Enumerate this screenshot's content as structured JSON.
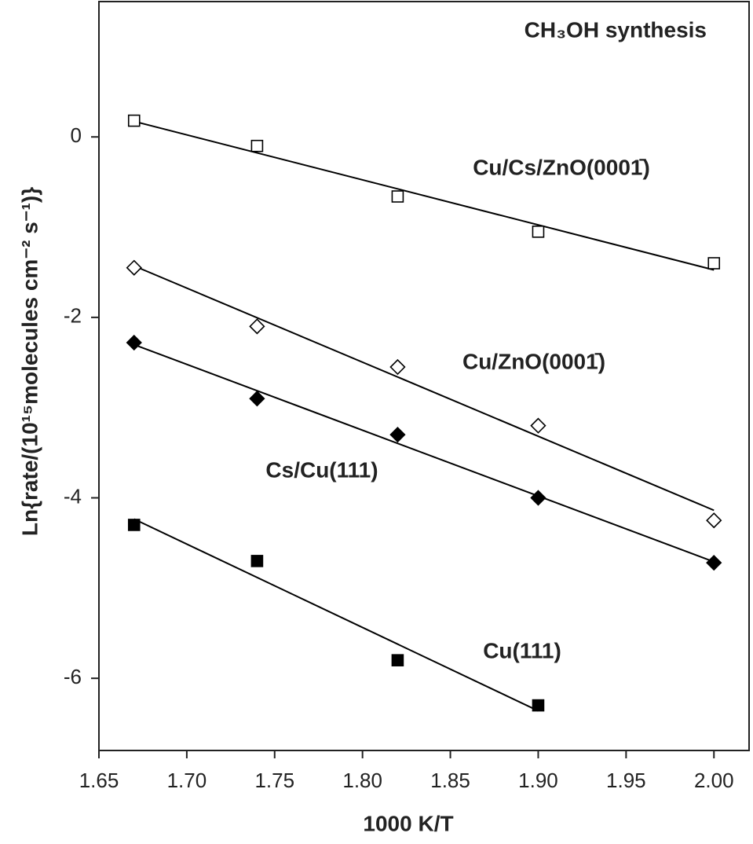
{
  "chart_data": {
    "type": "scatter",
    "title": "CH₃OH synthesis",
    "x_label": "1000 K/T",
    "y_label": "Ln{rate/(10¹⁵molecules cm⁻² s⁻¹)}",
    "xlim": [
      1.65,
      2.02
    ],
    "ylim": [
      -6.8,
      1.5
    ],
    "xticks": [
      1.65,
      {
        "value": 1.7,
        "label": "1.70"
      },
      1.75,
      {
        "value": 1.8,
        "label": "1.80"
      },
      1.85,
      {
        "value": 1.9,
        "label": "1.90"
      },
      1.95,
      {
        "value": 2.0,
        "label": "2.00"
      }
    ],
    "yticks": [
      0,
      -2,
      -4,
      -6
    ],
    "fit_lines": true,
    "series": [
      {
        "name": "Cu/Cs/ZnO(0001̄)",
        "color": "#000000",
        "marker": "square",
        "filled": false,
        "x": [
          1.67,
          1.74,
          1.82,
          1.9,
          2.0
        ],
        "values": [
          0.18,
          -0.1,
          -0.66,
          -1.05,
          -1.4
        ]
      },
      {
        "name": "Cu/ZnO(0001̄)",
        "color": "#000000",
        "marker": "diamond",
        "filled": false,
        "x": [
          1.67,
          1.74,
          1.82,
          1.9,
          2.0
        ],
        "values": [
          -1.45,
          -2.1,
          -2.55,
          -3.2,
          -4.25
        ]
      },
      {
        "name": "Cs/Cu(111)",
        "color": "#000000",
        "marker": "diamond",
        "filled": true,
        "x": [
          1.67,
          1.74,
          1.82,
          1.9,
          2.0
        ],
        "values": [
          -2.28,
          -2.9,
          -3.3,
          -4.0,
          -4.72
        ]
      },
      {
        "name": "Cu(111)",
        "color": "#000000",
        "marker": "square",
        "filled": true,
        "x": [
          1.67,
          1.74,
          1.82,
          1.9
        ],
        "values": [
          -4.3,
          -4.7,
          -5.8,
          -6.3
        ]
      }
    ]
  }
}
